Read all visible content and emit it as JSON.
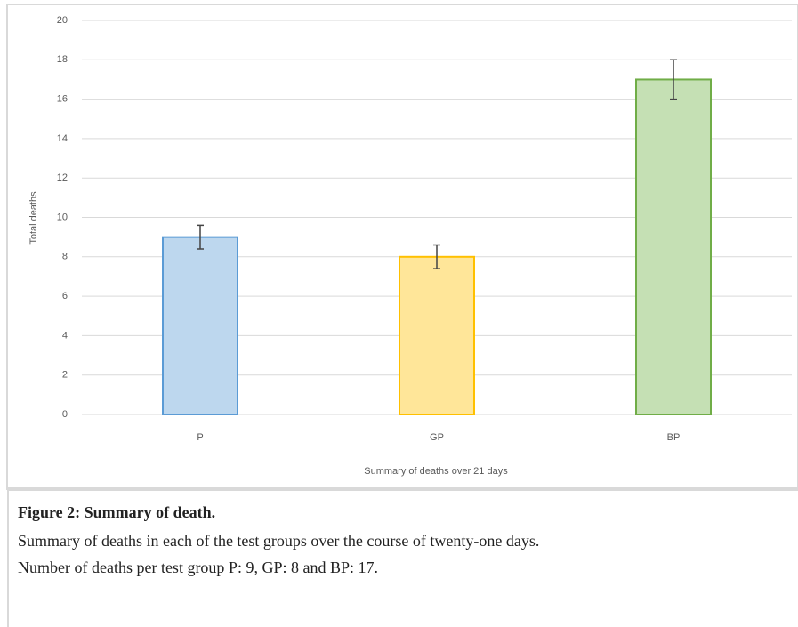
{
  "chart_data": {
    "type": "bar",
    "ylabel": "Total deaths",
    "xlabel": "Summary of deaths over 21 days",
    "categories": [
      "P",
      "GP",
      "BP"
    ],
    "values": [
      9,
      8,
      17
    ],
    "errors": [
      0.6,
      0.6,
      1
    ],
    "colors": [
      "#bdd7ee",
      "#ffe699",
      "#c5e0b4"
    ],
    "edge_colors": [
      "#5b9bd5",
      "#ffc000",
      "#70ad47"
    ],
    "ylim": [
      0,
      20
    ],
    "yticks": [
      0,
      2,
      4,
      6,
      8,
      10,
      12,
      14,
      16,
      18,
      20
    ],
    "grid": true
  },
  "caption": {
    "title": "Figure 2: Summary of death.",
    "lines": [
      "Summary of deaths in each of the test groups over the course of twenty-one days.",
      "Number of deaths per test group P: 9, GP: 8 and BP: 17."
    ]
  }
}
